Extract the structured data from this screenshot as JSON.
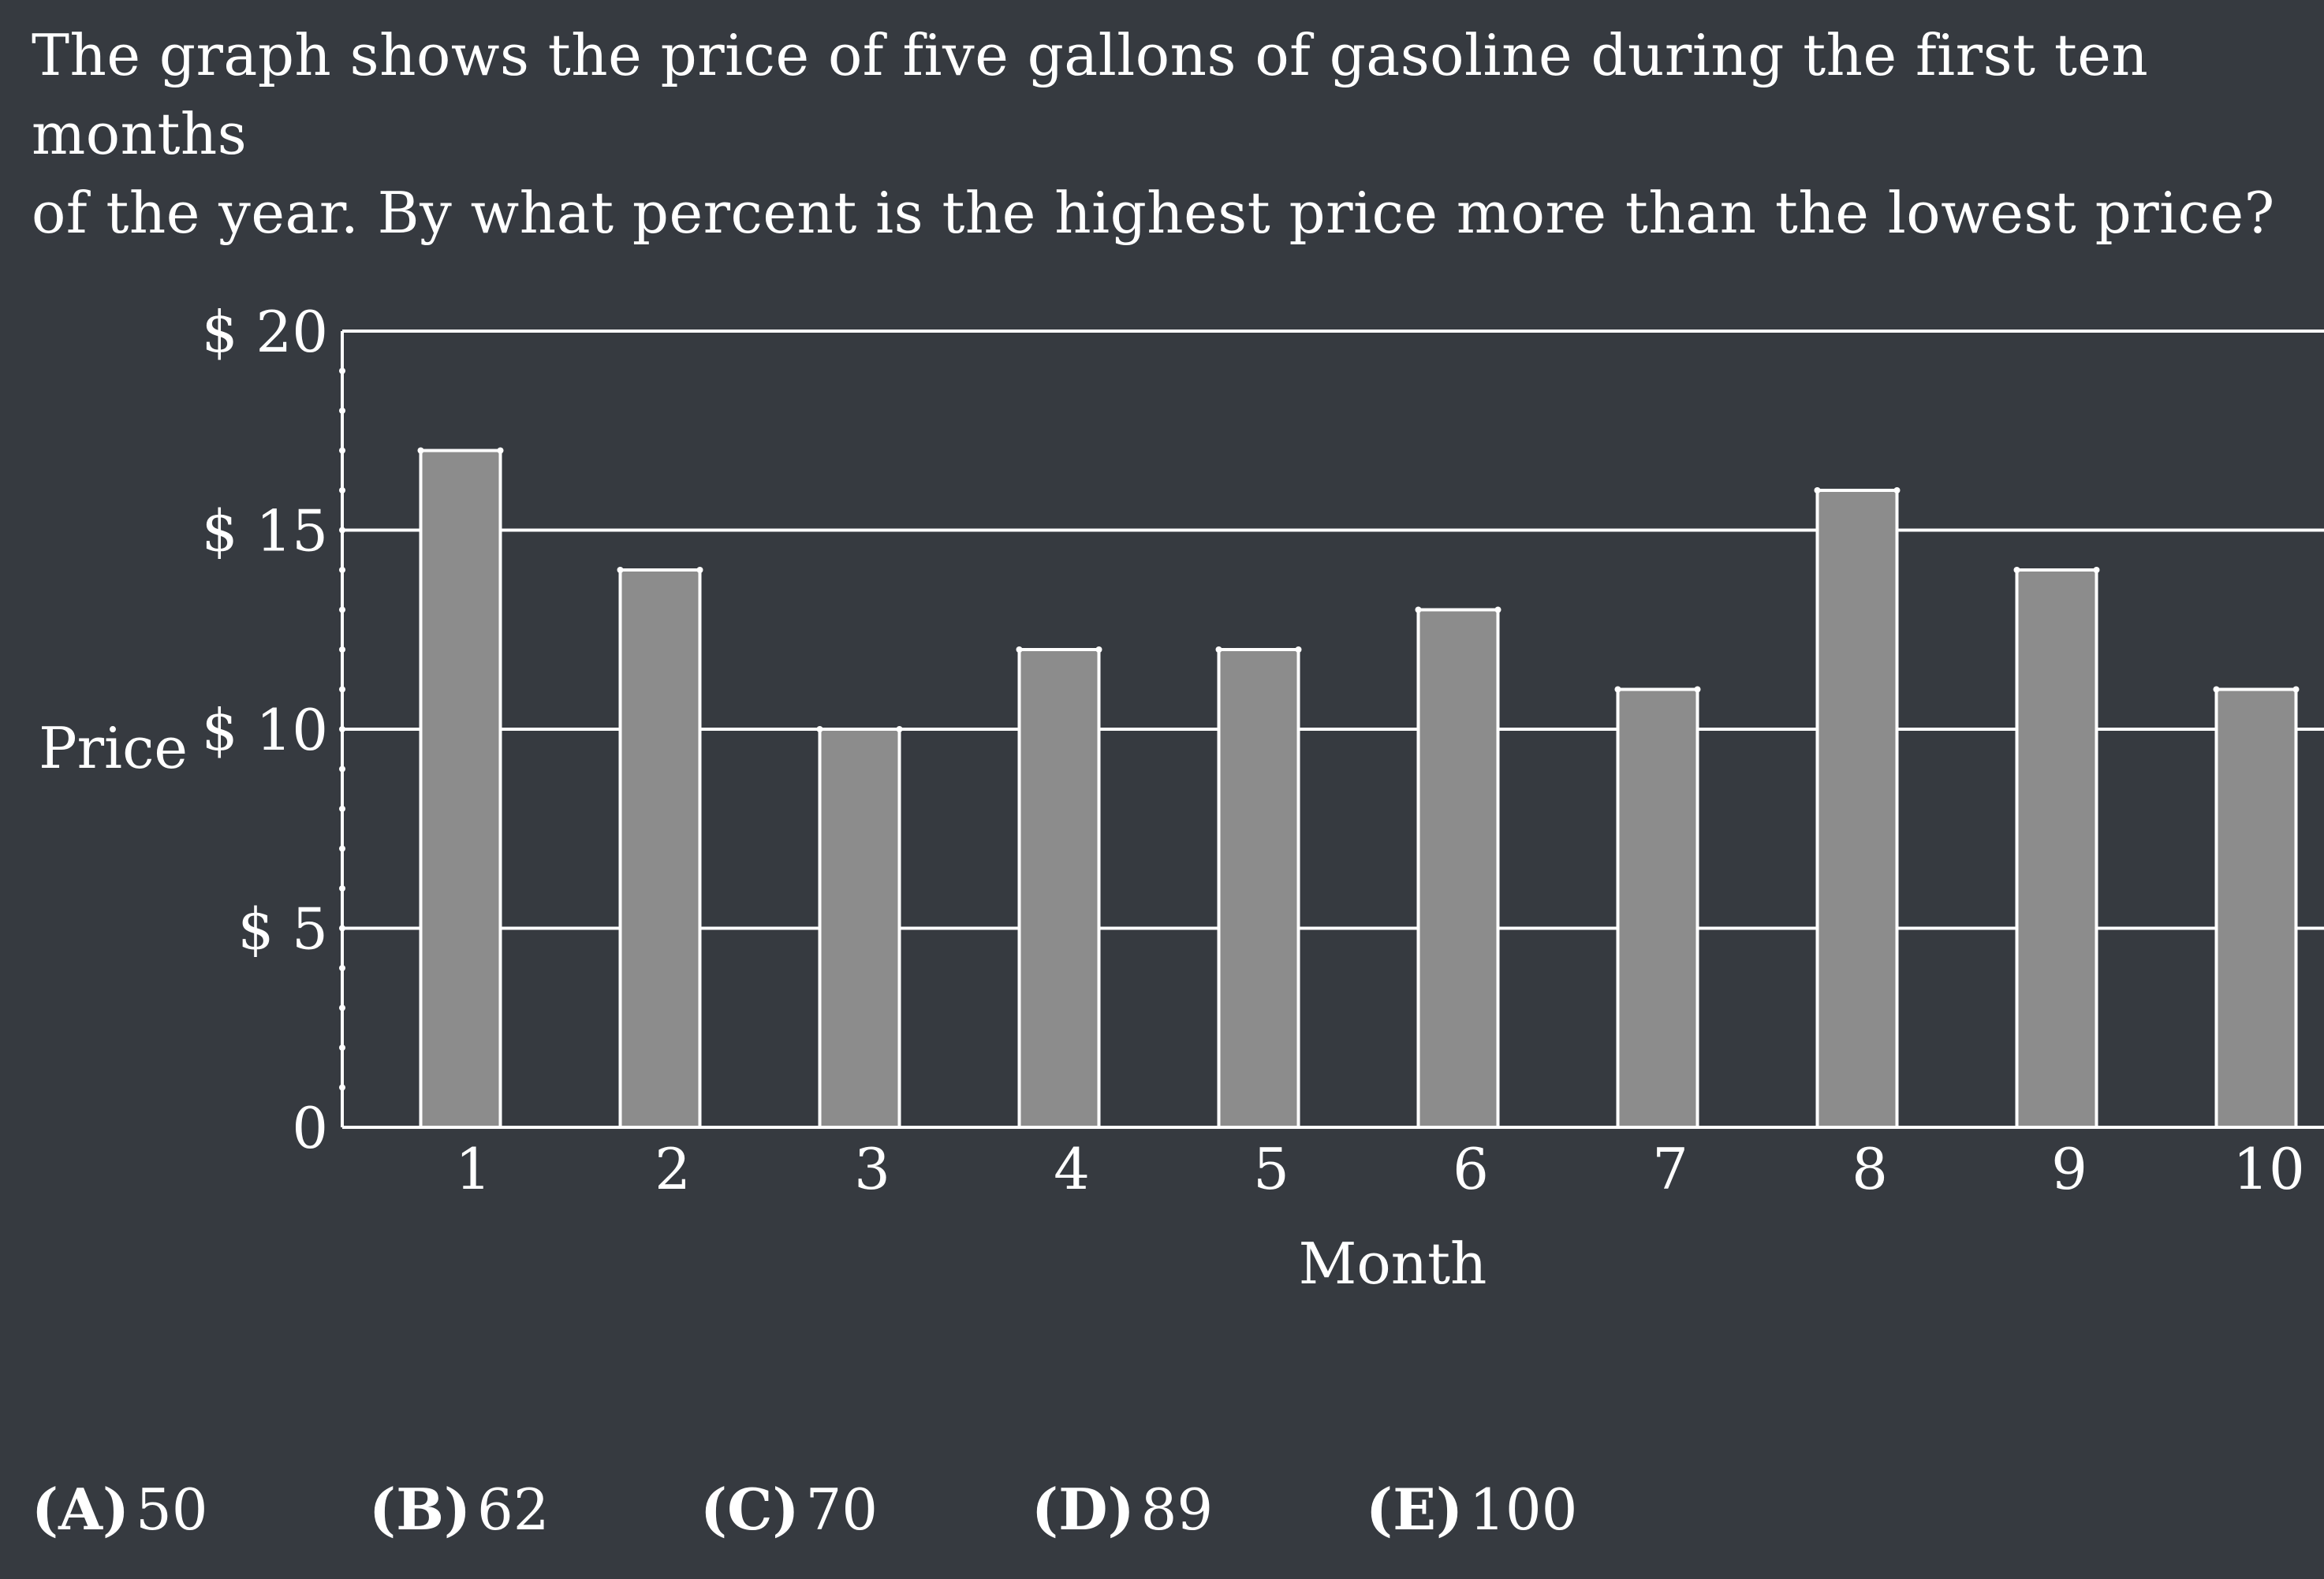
{
  "question": {
    "line1": "The graph shows the price of five gallons of gasoline during the first ten months",
    "line2": "of the year. By what percent is the highest price more than the lowest price?"
  },
  "chart_data": {
    "type": "bar",
    "categories": [
      "1",
      "2",
      "3",
      "4",
      "5",
      "6",
      "7",
      "8",
      "9",
      "10"
    ],
    "values": [
      17,
      14,
      10,
      12,
      12,
      13,
      11,
      16,
      14,
      11
    ],
    "xlabel": "Month",
    "ylabel": "Price",
    "ylim": [
      0,
      20
    ],
    "yticks": [
      0,
      5,
      10,
      15,
      20
    ],
    "ytick_labels": [
      "0",
      "$ 5",
      "$ 10",
      "$ 15",
      "$ 20"
    ],
    "grid": true,
    "colors": {
      "background": "#363a40",
      "bar_fill": "#8c8c8c",
      "lines": "#ffffff"
    }
  },
  "answers": [
    {
      "letter": "(A)",
      "value": "50"
    },
    {
      "letter": "(B)",
      "value": "62"
    },
    {
      "letter": "(C)",
      "value": "70"
    },
    {
      "letter": "(D)",
      "value": "89"
    },
    {
      "letter": "(E)",
      "value": "100"
    }
  ]
}
